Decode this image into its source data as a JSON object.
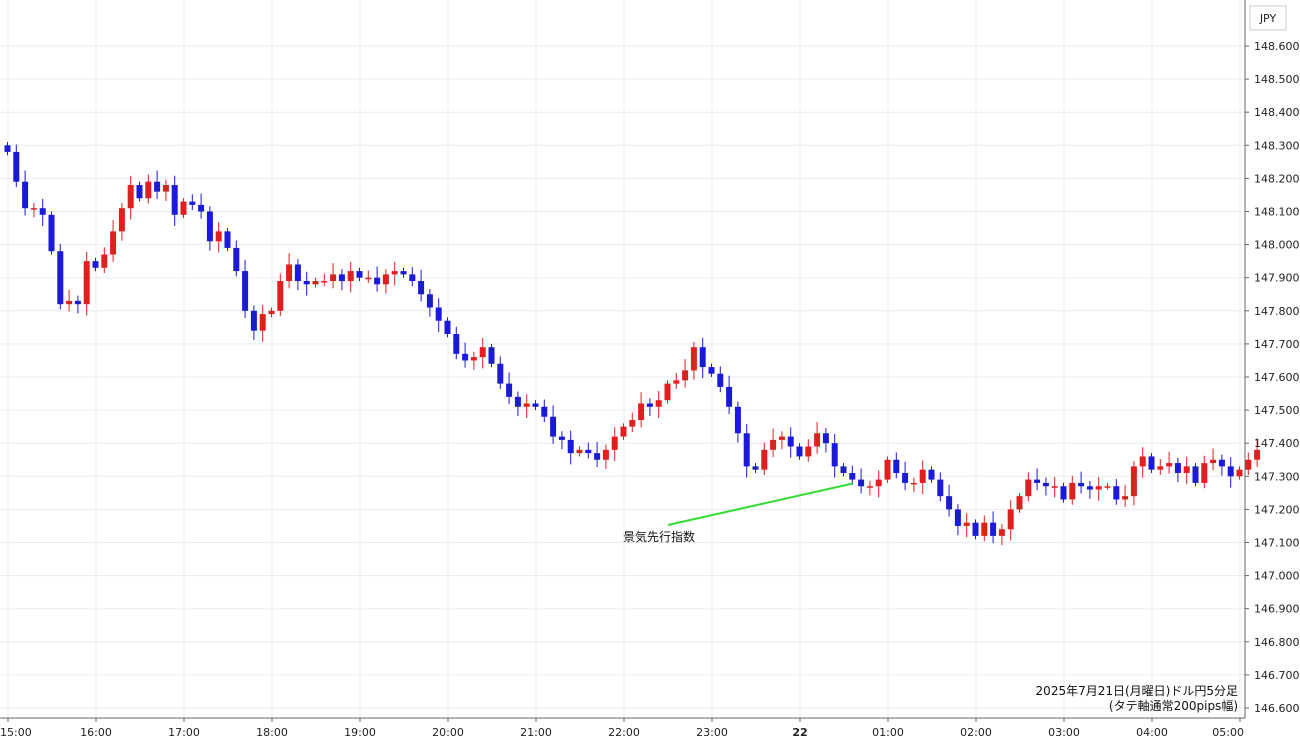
{
  "chart_data": {
    "type": "candlestick",
    "currency_label": "JPY",
    "caption_line1": "2025年7月21日(月曜日)ドル円5分足",
    "caption_line2": "(タテ軸通常200pips幅)",
    "y_ticks": [
      "148.600",
      "148.500",
      "148.400",
      "148.300",
      "148.200",
      "148.100",
      "148.000",
      "147.900",
      "147.800",
      "147.700",
      "147.600",
      "147.500",
      "147.400",
      "147.300",
      "147.200",
      "147.100",
      "147.000",
      "146.900",
      "146.800",
      "146.700",
      "146.600"
    ],
    "ylim": [
      146.58,
      148.66
    ],
    "x_ticks": [
      {
        "label": "15:00",
        "bold": false
      },
      {
        "label": "16:00",
        "bold": false
      },
      {
        "label": "17:00",
        "bold": false
      },
      {
        "label": "18:00",
        "bold": false
      },
      {
        "label": "19:00",
        "bold": false
      },
      {
        "label": "20:00",
        "bold": false
      },
      {
        "label": "21:00",
        "bold": false
      },
      {
        "label": "22:00",
        "bold": false
      },
      {
        "label": "23:00",
        "bold": false
      },
      {
        "label": "22",
        "bold": true
      },
      {
        "label": "01:00",
        "bold": false
      },
      {
        "label": "02:00",
        "bold": false
      },
      {
        "label": "03:00",
        "bold": false
      },
      {
        "label": "04:00",
        "bold": false
      },
      {
        "label": "05:00",
        "bold": false
      }
    ],
    "up_color": "#e02020",
    "down_color": "#1a1ad8",
    "annotation": {
      "text": "景気先行指数",
      "color": "#33dd33",
      "candle_index": 96
    },
    "closes": [
      148.28,
      148.19,
      148.11,
      148.11,
      148.09,
      147.98,
      147.82,
      147.83,
      147.82,
      147.95,
      147.93,
      147.97,
      148.04,
      148.11,
      148.18,
      148.14,
      148.19,
      148.16,
      148.18,
      148.09,
      148.13,
      148.12,
      148.1,
      148.01,
      148.04,
      147.99,
      147.92,
      147.8,
      147.74,
      147.79,
      147.8,
      147.89,
      147.94,
      147.89,
      147.88,
      147.89,
      147.89,
      147.91,
      147.89,
      147.92,
      147.9,
      147.9,
      147.88,
      147.91,
      147.92,
      147.91,
      147.89,
      147.85,
      147.81,
      147.77,
      147.73,
      147.67,
      147.65,
      147.66,
      147.69,
      147.64,
      147.58,
      147.54,
      147.51,
      147.52,
      147.51,
      147.48,
      147.42,
      147.41,
      147.37,
      147.38,
      147.37,
      147.35,
      147.38,
      147.42,
      147.45,
      147.47,
      147.52,
      147.51,
      147.53,
      147.58,
      147.59,
      147.62,
      147.69,
      147.63,
      147.61,
      147.57,
      147.51,
      147.43,
      147.33,
      147.32,
      147.38,
      147.41,
      147.42,
      147.39,
      147.36,
      147.39,
      147.43,
      147.4,
      147.33,
      147.31,
      147.29,
      147.27,
      147.27,
      147.29,
      147.35,
      147.31,
      147.28,
      147.28,
      147.32,
      147.29,
      147.24,
      147.2,
      147.15,
      147.16,
      147.12,
      147.16,
      147.12,
      147.14,
      147.2,
      147.24,
      147.29,
      147.28,
      147.27,
      147.27,
      147.23,
      147.28,
      147.27,
      147.26,
      147.27,
      147.27,
      147.23,
      147.24,
      147.33,
      147.36,
      147.32,
      147.33,
      147.34,
      147.31,
      147.33,
      147.28,
      147.34,
      147.35,
      147.33,
      147.3,
      147.32,
      147.35,
      147.38
    ]
  }
}
